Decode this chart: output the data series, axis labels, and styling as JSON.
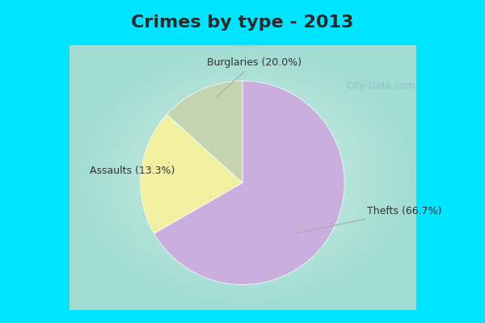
{
  "title": "Crimes by type - 2013",
  "slices": [
    "Thefts",
    "Burglaries",
    "Assaults"
  ],
  "values": [
    66.7,
    20.0,
    13.3
  ],
  "colors": [
    "#c9aede",
    "#f0f0a0",
    "#c5d4b0"
  ],
  "labels": [
    "Thefts (66.7%)",
    "Burglaries (20.0%)",
    "Assaults (13.3%)"
  ],
  "background_border": "#00e5ff",
  "background_center": "#d8f0e8",
  "title_fontsize": 16,
  "title_color": "#2a2a2a",
  "watermark": "City-Data.com",
  "startangle": 90,
  "label_color": "#333333",
  "label_fontsize": 9,
  "line_color": "#aaaaaa",
  "border_width": 12
}
